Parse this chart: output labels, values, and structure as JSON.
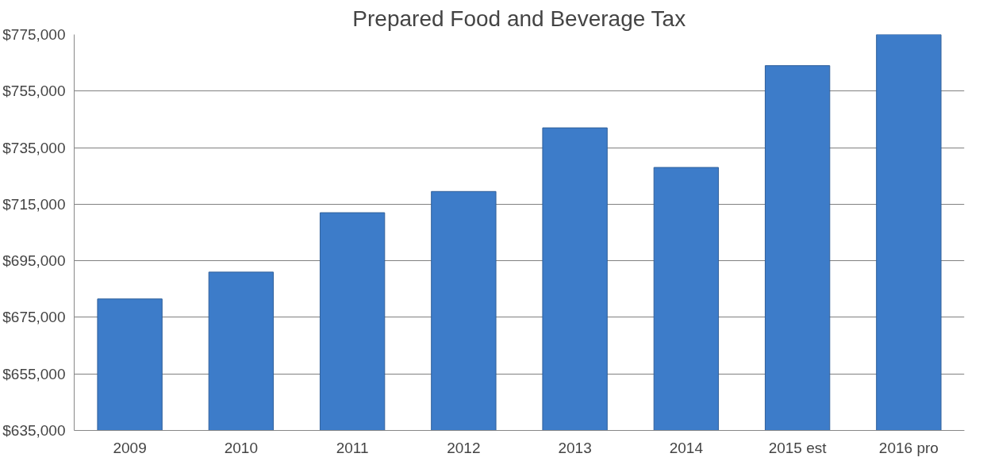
{
  "chart_data": {
    "type": "bar",
    "title": "Prepared Food and Beverage Tax",
    "categories": [
      "2009",
      "2010",
      "2011",
      "2012",
      "2013",
      "2014",
      "2015 est",
      "2016 pro"
    ],
    "values": [
      681500,
      691000,
      712000,
      719500,
      742000,
      728000,
      764000,
      775000
    ],
    "color": "#3d7cc9",
    "ylim": [
      635000,
      775000
    ],
    "yticks": [
      {
        "value": 635000,
        "label": "$635,000"
      },
      {
        "value": 655000,
        "label": "$655,000"
      },
      {
        "value": 675000,
        "label": "$675,000"
      },
      {
        "value": 695000,
        "label": "$695,000"
      },
      {
        "value": 715000,
        "label": "$715,000"
      },
      {
        "value": 735000,
        "label": "$735,000"
      },
      {
        "value": 755000,
        "label": "$755,000"
      },
      {
        "value": 775000,
        "label": "$775,000"
      }
    ],
    "grid": "y"
  }
}
